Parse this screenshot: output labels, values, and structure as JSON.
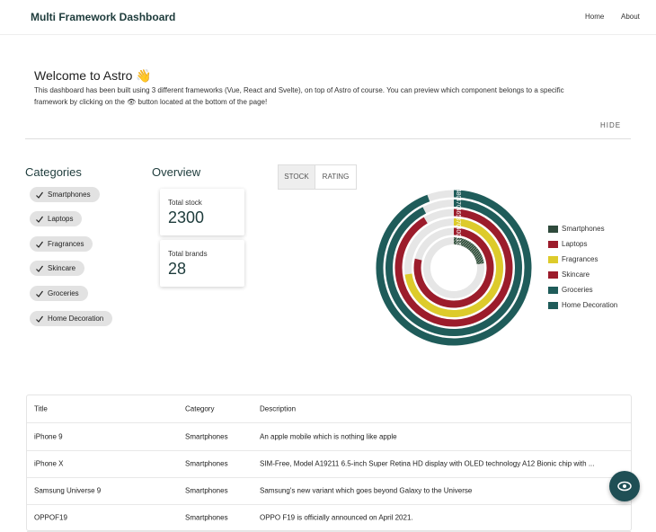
{
  "header": {
    "title": "Multi Framework Dashboard",
    "nav": [
      "Home",
      "About"
    ]
  },
  "welcome": {
    "title": "Welcome to Astro 👋",
    "text": "This dashboard has been built using 3 different frameworks (Vue, React and Svelte), on top of Astro of course. You can preview which component belongs to a specific framework by clicking on the 👁 button located at the bottom of the page!",
    "hide": "HIDE"
  },
  "categories": {
    "title": "Categories",
    "items": [
      "Smartphones",
      "Laptops",
      "Fragrances",
      "Skincare",
      "Groceries",
      "Home Decoration"
    ]
  },
  "overview": {
    "title": "Overview",
    "cards": [
      {
        "label": "Total stock",
        "value": "2300"
      },
      {
        "label": "Total brands",
        "value": "28"
      }
    ]
  },
  "chart": {
    "type": "radial-bar",
    "tabs": [
      "STOCK",
      "RATING"
    ],
    "series": [
      {
        "name": "Smartphones",
        "color": "#2f4a3c",
        "value": 115
      },
      {
        "name": "Laptops",
        "color": "#9c1c2b",
        "value": 400
      },
      {
        "name": "Fragrances",
        "color": "#ddcb2b",
        "value": 370
      },
      {
        "name": "Skincare",
        "color": "#9c1c2b",
        "value": 465
      },
      {
        "name": "Groceries",
        "color": "#1f5c5a",
        "value": 470
      },
      {
        "name": "Home Decoration",
        "color": "#1f5c5a",
        "value": 480
      }
    ]
  },
  "table": {
    "columns": [
      "Title",
      "Category",
      "Description"
    ],
    "rows": [
      [
        "iPhone 9",
        "Smartphones",
        "An apple mobile which is nothing like apple"
      ],
      [
        "iPhone X",
        "Smartphones",
        "SIM-Free, Model A19211 6.5-inch Super Retina HD display with OLED technology A12 Bionic chip with ..."
      ],
      [
        "Samsung Universe 9",
        "Smartphones",
        "Samsung's new variant which goes beyond Galaxy to the Universe"
      ],
      [
        "OPPOF19",
        "Smartphones",
        "OPPO F19 is officially announced on April 2021."
      ]
    ]
  }
}
